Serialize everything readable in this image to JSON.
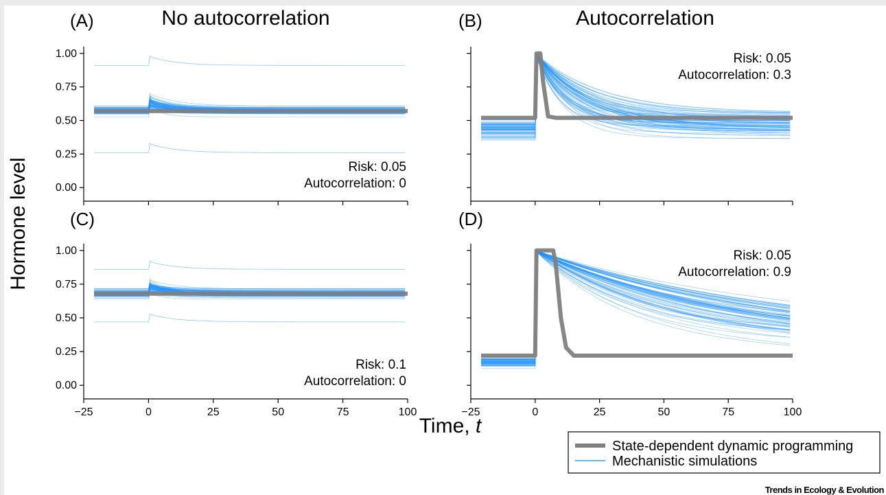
{
  "figure": {
    "column_titles": [
      "No autocorrelation",
      "Autocorrelation"
    ],
    "ylabel": "Hormone level",
    "xlabel_text": "Time, ",
    "xlabel_var": "t",
    "credit": "Trends in Ecology & Evolution",
    "colors": {
      "dp_line": "#808080",
      "mechanistic": "#1e90ff",
      "mechanistic_legend": "#29a3e6"
    },
    "legend": {
      "items": [
        {
          "label": "State-dependent dynamic programming",
          "style": "thick-gray"
        },
        {
          "label": "Mechanistic simulations",
          "style": "thin-blue"
        }
      ]
    }
  },
  "chart_data": [
    {
      "panel": "A",
      "letter": "(A)",
      "type": "line",
      "risk_label": "Risk: 0.05",
      "autocorr_label": "Autocorrelation: 0",
      "annotation_corner": "bottom-right",
      "xlim": [
        -25,
        100
      ],
      "ylim": [
        -0.05,
        1.05
      ],
      "xticks": [
        -25,
        0,
        25,
        50,
        75,
        100
      ],
      "xtick_labels_shown": false,
      "yticks": [
        0.0,
        0.25,
        0.5,
        0.75,
        1.0
      ],
      "ytick_labels": [
        "0.00",
        "0.25",
        "0.50",
        "0.75",
        "1.00"
      ],
      "show_ytick_labels": true,
      "series": [
        {
          "kind": "dp",
          "x": [
            -21,
            0,
            100
          ],
          "y": [
            0.57,
            0.57,
            0.57
          ]
        }
      ],
      "mechanistic": {
        "baseline_mean": 0.57,
        "baseline_spread": 0.035,
        "peak": 0.64,
        "decay_tau": 8,
        "outliers": [
          0.91,
          0.26
        ]
      }
    },
    {
      "panel": "B",
      "letter": "(B)",
      "type": "line",
      "risk_label": "Risk: 0.05",
      "autocorr_label": "Autocorrelation: 0.3",
      "annotation_corner": "top-right",
      "xlim": [
        -25,
        100
      ],
      "ylim": [
        -0.05,
        1.05
      ],
      "xticks": [
        -25,
        0,
        25,
        50,
        75,
        100
      ],
      "xtick_labels_shown": false,
      "yticks": [
        0.0,
        0.25,
        0.5,
        0.75,
        1.0
      ],
      "show_ytick_labels": false,
      "series": [
        {
          "kind": "dp",
          "x": [
            -21,
            0,
            0.5,
            2,
            3,
            5,
            8,
            100
          ],
          "y": [
            0.52,
            0.52,
            1.0,
            1.0,
            0.8,
            0.53,
            0.52,
            0.52
          ]
        }
      ],
      "mechanistic": {
        "baseline_mean": 0.44,
        "baseline_spread": 0.06,
        "peak": 1.0,
        "final_mean": 0.47,
        "decay_tau": 18
      }
    },
    {
      "panel": "C",
      "letter": "(C)",
      "type": "line",
      "risk_label": "Risk: 0.1",
      "autocorr_label": "Autocorrelation: 0",
      "annotation_corner": "bottom-right",
      "xlim": [
        -25,
        100
      ],
      "ylim": [
        -0.05,
        1.05
      ],
      "xticks": [
        -25,
        0,
        25,
        50,
        75,
        100
      ],
      "xtick_labels_shown": true,
      "xtick_labels": [
        "−25",
        "0",
        "25",
        "50",
        "75",
        "100"
      ],
      "yticks": [
        0.0,
        0.25,
        0.5,
        0.75,
        1.0
      ],
      "ytick_labels": [
        "0.00",
        "0.25",
        "0.50",
        "0.75",
        "1.00"
      ],
      "show_ytick_labels": true,
      "series": [
        {
          "kind": "dp",
          "x": [
            -21,
            0,
            100
          ],
          "y": [
            0.68,
            0.68,
            0.68
          ]
        }
      ],
      "mechanistic": {
        "baseline_mean": 0.68,
        "baseline_spread": 0.03,
        "peak": 0.74,
        "decay_tau": 8,
        "outliers": [
          0.86,
          0.47
        ]
      }
    },
    {
      "panel": "D",
      "letter": "(D)",
      "type": "line",
      "risk_label": "Risk: 0.05",
      "autocorr_label": "Autocorrelation: 0.9",
      "annotation_corner": "top-right",
      "xlim": [
        -25,
        100
      ],
      "ylim": [
        -0.05,
        1.05
      ],
      "xticks": [
        -25,
        0,
        25,
        50,
        75,
        100
      ],
      "xtick_labels_shown": true,
      "xtick_labels": [
        "−25",
        "0",
        "25",
        "50",
        "75",
        "100"
      ],
      "yticks": [
        0.0,
        0.25,
        0.5,
        0.75,
        1.0
      ],
      "show_ytick_labels": false,
      "series": [
        {
          "kind": "dp",
          "x": [
            -21,
            0,
            0.5,
            7,
            8,
            10,
            12,
            15,
            100
          ],
          "y": [
            0.22,
            0.22,
            1.0,
            1.0,
            0.9,
            0.5,
            0.28,
            0.22,
            0.22
          ]
        }
      ],
      "mechanistic": {
        "baseline_mean": 0.18,
        "baseline_spread": 0.04,
        "peak": 1.0,
        "final_mean": 0.33,
        "decay_tau": 70
      }
    }
  ]
}
